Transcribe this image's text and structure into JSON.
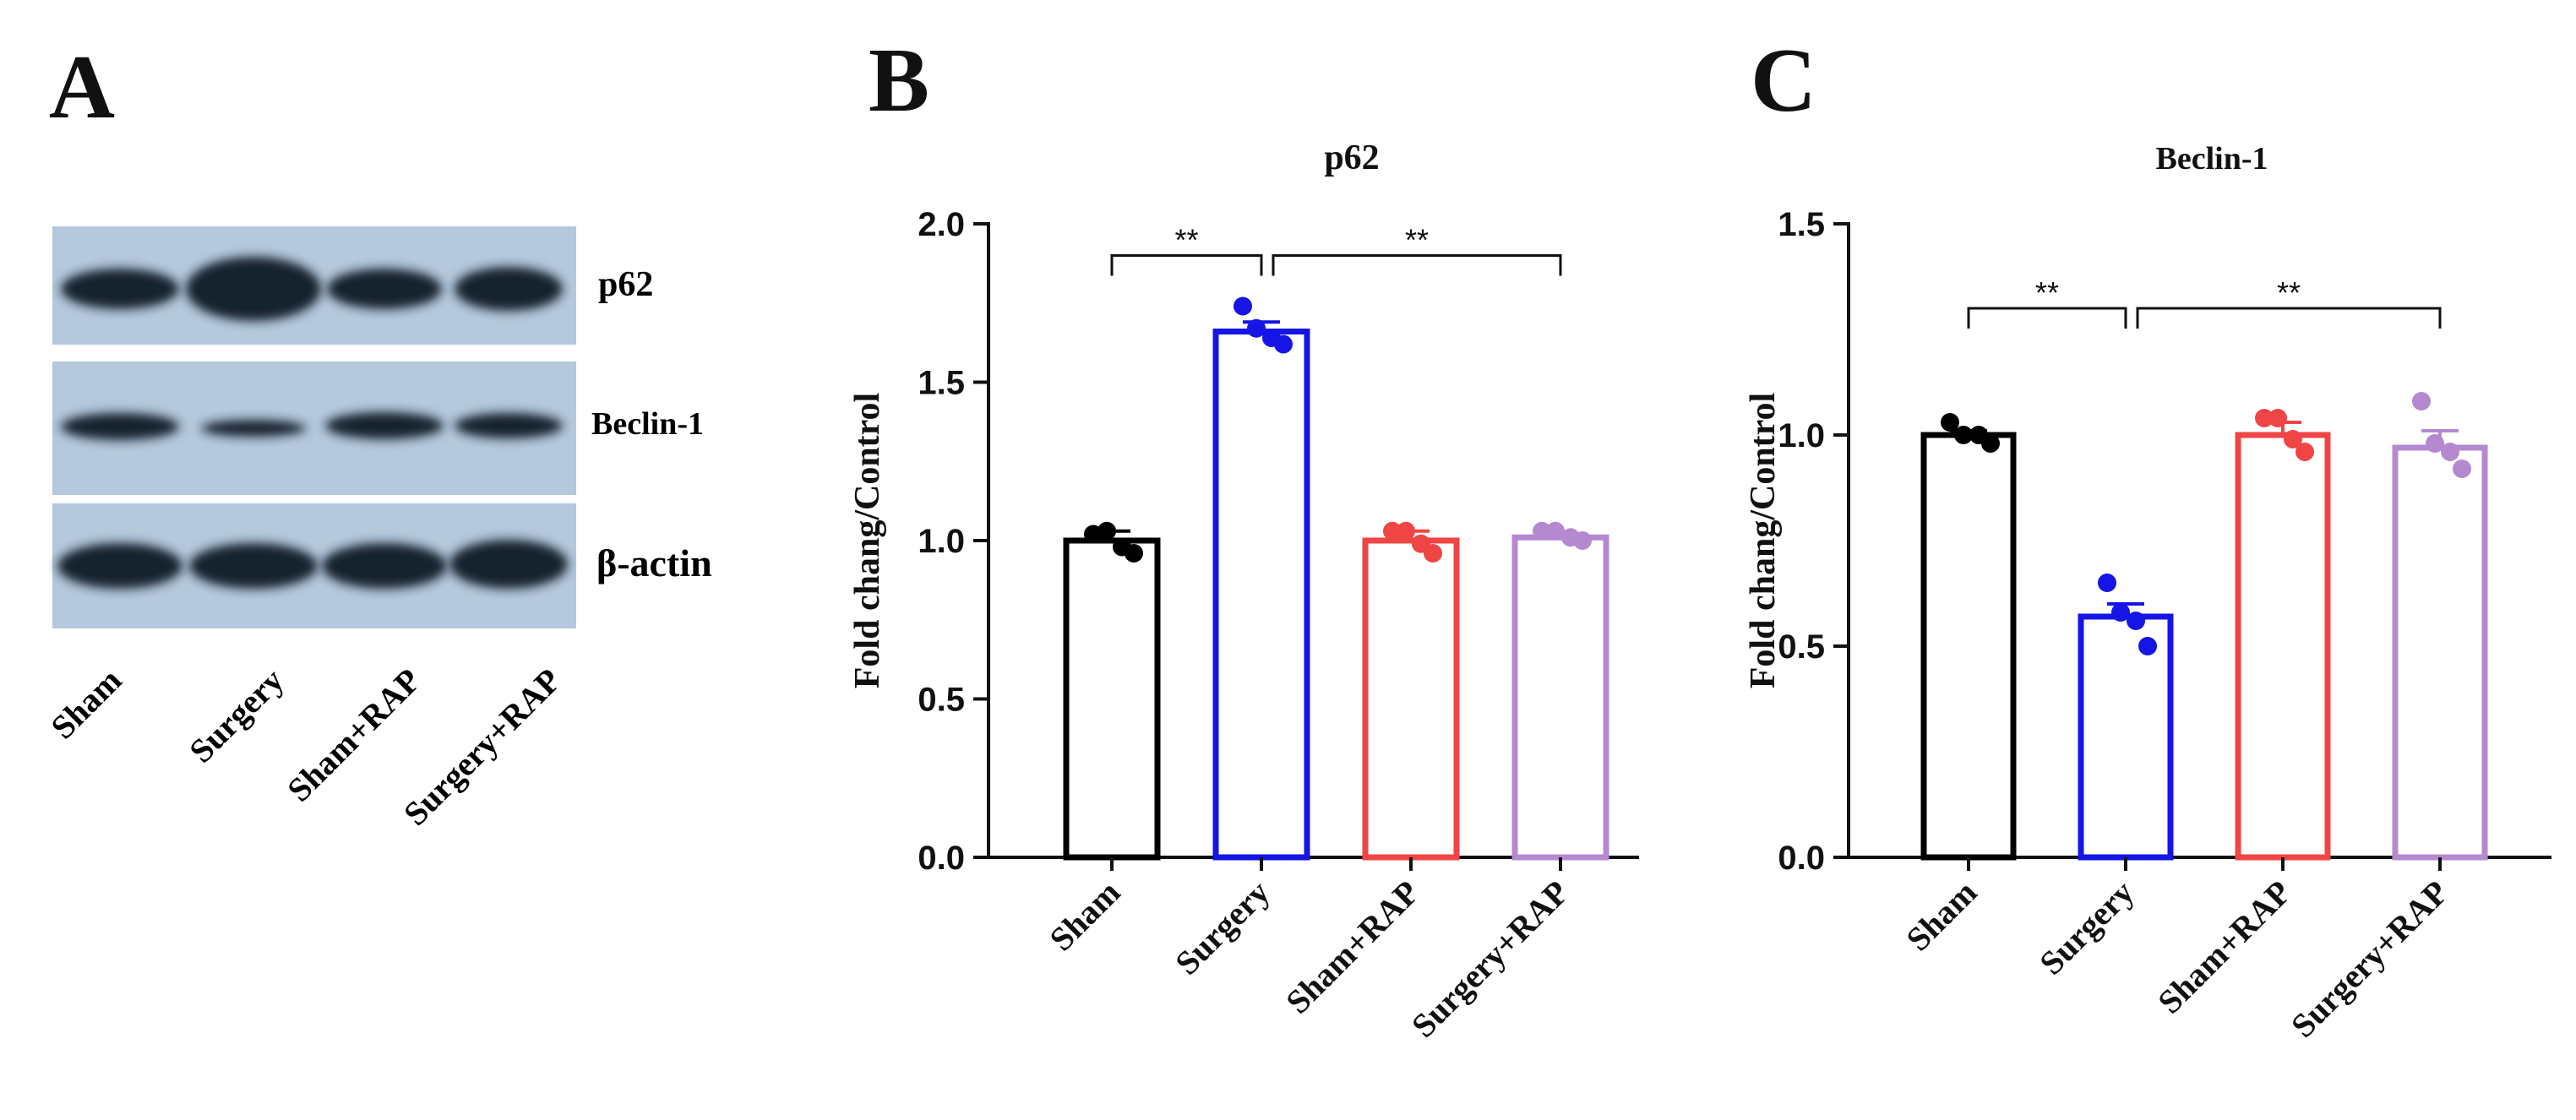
{
  "panels": {
    "a": {
      "letter": "A",
      "bands": [
        "p62",
        "Beclin-1",
        "β-actin"
      ],
      "lanes": [
        "Sham",
        "Surgery",
        "Sham+RAP",
        "Surgery+RAP"
      ]
    },
    "b": {
      "letter": "B"
    },
    "c": {
      "letter": "C"
    }
  },
  "colors": {
    "sham": "#000000",
    "surgery": "#1515e6",
    "sham_rap": "#ef4545",
    "surgery_rap": "#b589cf",
    "blot_bg": "#b5c8dc",
    "band": "#16202e"
  },
  "chart_data": [
    {
      "type": "bar",
      "title": "p62",
      "ylabel": "Fold chang/Control",
      "xlabel": "",
      "categories": [
        "Sham",
        "Surgery",
        "Sham+RAP",
        "Surgery+RAP"
      ],
      "values": [
        1.0,
        1.66,
        1.0,
        1.01
      ],
      "errors": [
        0.03,
        0.03,
        0.03,
        0.01
      ],
      "points": [
        [
          1.02,
          1.03,
          0.98,
          0.96
        ],
        [
          1.74,
          1.67,
          1.64,
          1.62
        ],
        [
          1.03,
          1.03,
          0.99,
          0.96
        ],
        [
          1.03,
          1.03,
          1.01,
          1.0
        ]
      ],
      "ylim": [
        0,
        2.0
      ],
      "yticks": [
        "0.0",
        "0.5",
        "1.0",
        "1.5",
        "2.0"
      ],
      "brackets": [
        {
          "from": 0,
          "to": 1,
          "y": 1.9,
          "label": "**"
        },
        {
          "from": 1,
          "to": 3,
          "y": 1.9,
          "label": "**"
        }
      ]
    },
    {
      "type": "bar",
      "title": "Beclin-1",
      "ylabel": "Fold chang/Control",
      "xlabel": "",
      "categories": [
        "Sham",
        "Surgery",
        "Sham+RAP",
        "Surgery+RAP"
      ],
      "values": [
        1.0,
        0.57,
        1.0,
        0.97
      ],
      "errors": [
        0.01,
        0.03,
        0.03,
        0.04
      ],
      "points": [
        [
          1.03,
          1.0,
          1.0,
          0.98
        ],
        [
          0.65,
          0.58,
          0.56,
          0.5
        ],
        [
          1.04,
          1.04,
          0.99,
          0.96
        ],
        [
          1.08,
          0.98,
          0.96,
          0.92
        ]
      ],
      "ylim": [
        0,
        1.5
      ],
      "yticks": [
        "0.0",
        "0.5",
        "1.0",
        "1.5"
      ],
      "brackets": [
        {
          "from": 0,
          "to": 1,
          "y": 1.3,
          "label": "**"
        },
        {
          "from": 1,
          "to": 3,
          "y": 1.3,
          "label": "**"
        }
      ]
    }
  ]
}
